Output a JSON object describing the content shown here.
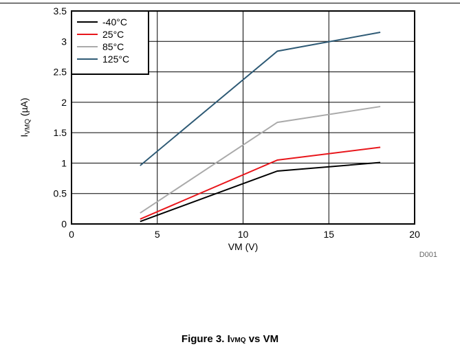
{
  "chart_data": {
    "type": "line",
    "xlabel": "VM (V)",
    "ylabel_main": "I",
    "ylabel_sub": "VMQ",
    "ylabel_unit": " (µA)",
    "xlim": [
      0,
      20
    ],
    "ylim": [
      0,
      3.5
    ],
    "xticks": [
      0,
      5,
      10,
      15,
      20
    ],
    "yticks": [
      0,
      0.5,
      1,
      1.5,
      2,
      2.5,
      3,
      3.5
    ],
    "xtick_labels": [
      "0",
      "5",
      "10",
      "15",
      "20"
    ],
    "ytick_labels": [
      "0",
      "0.5",
      "1",
      "1.5",
      "2",
      "2.5",
      "3",
      "3.5"
    ],
    "grid": true,
    "legend_position": "top-left",
    "annotation": "D001",
    "series": [
      {
        "name": "-40°C",
        "color": "#000000",
        "x": [
          4,
          12,
          18
        ],
        "y": [
          0.04,
          0.87,
          1.01
        ]
      },
      {
        "name": "25°C",
        "color": "#e8161b",
        "x": [
          4,
          12,
          18
        ],
        "y": [
          0.08,
          1.05,
          1.26
        ]
      },
      {
        "name": "85°C",
        "color": "#aaaaaa",
        "x": [
          4,
          12,
          18
        ],
        "y": [
          0.18,
          1.67,
          1.93
        ]
      },
      {
        "name": "125°C",
        "color": "#2e5a75",
        "x": [
          4,
          12,
          18
        ],
        "y": [
          0.96,
          2.84,
          3.15
        ]
      }
    ]
  },
  "caption": {
    "prefix": "Figure 3. I",
    "sub": "VMQ",
    "suffix": " vs VM"
  }
}
